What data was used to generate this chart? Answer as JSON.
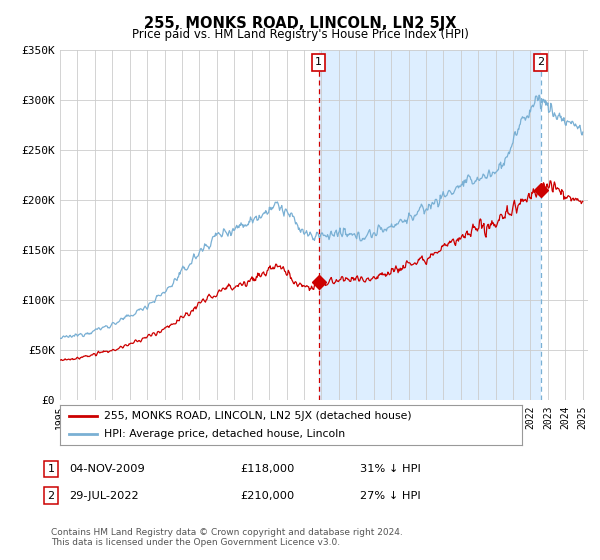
{
  "title": "255, MONKS ROAD, LINCOLN, LN2 5JX",
  "subtitle": "Price paid vs. HM Land Registry's House Price Index (HPI)",
  "legend_label_red": "255, MONKS ROAD, LINCOLN, LN2 5JX (detached house)",
  "legend_label_blue": "HPI: Average price, detached house, Lincoln",
  "annotation1_date": "04-NOV-2009",
  "annotation1_price": "£118,000",
  "annotation1_pct": "31% ↓ HPI",
  "annotation2_date": "29-JUL-2022",
  "annotation2_price": "£210,000",
  "annotation2_pct": "27% ↓ HPI",
  "footer": "Contains HM Land Registry data © Crown copyright and database right 2024.\nThis data is licensed under the Open Government Licence v3.0.",
  "ylim": [
    0,
    350000
  ],
  "yticks": [
    0,
    50000,
    100000,
    150000,
    200000,
    250000,
    300000,
    350000
  ],
  "ytick_labels": [
    "£0",
    "£50K",
    "£100K",
    "£150K",
    "£200K",
    "£250K",
    "£300K",
    "£350K"
  ],
  "xmin": 1995.0,
  "xmax": 2025.3,
  "marker1_x": 2009.84,
  "marker1_y": 118000,
  "marker2_x": 2022.58,
  "marker2_y": 210000,
  "red_color": "#cc0000",
  "blue_color": "#7ab0d4",
  "shade_color": "#ddeeff",
  "vline1_color": "#cc0000",
  "vline2_color": "#7ab0d4",
  "background_color": "#ffffff",
  "grid_color": "#cccccc"
}
